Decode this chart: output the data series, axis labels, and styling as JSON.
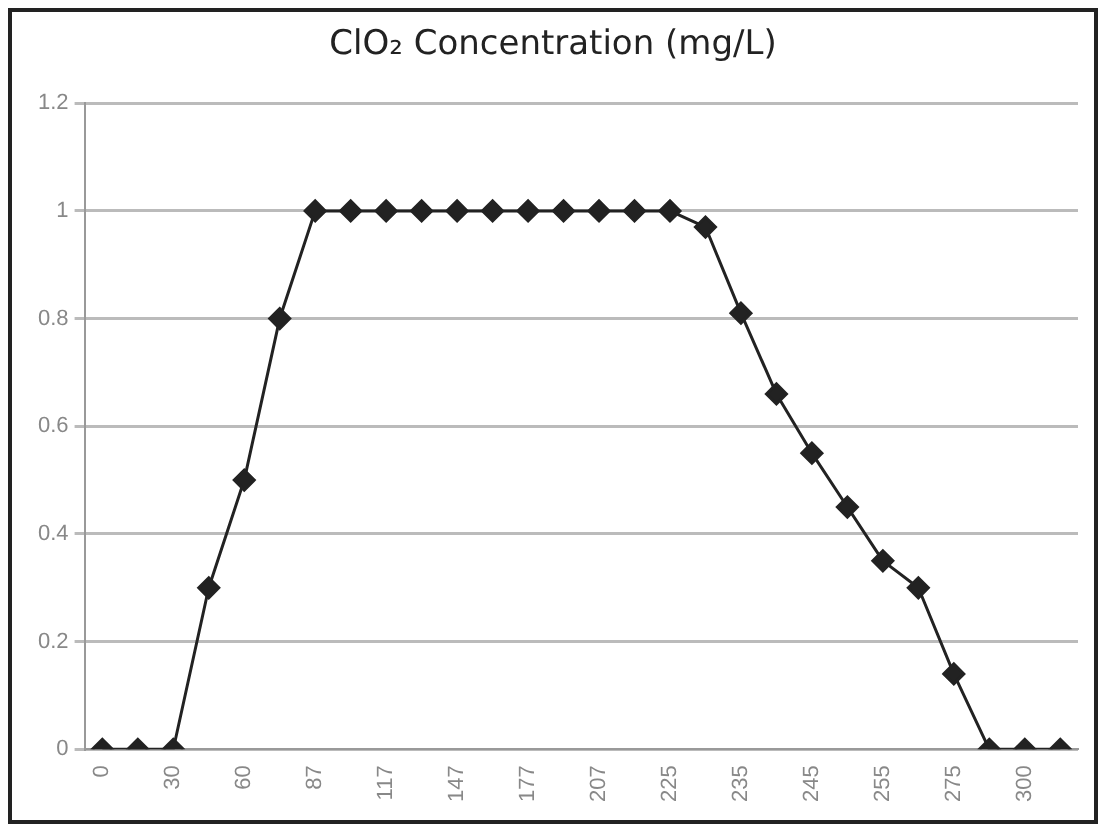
{
  "chart_data": {
    "type": "line",
    "title": "ClO₂ Concentration (mg/L)",
    "categories": [
      "0",
      null,
      "30",
      null,
      "60",
      null,
      "87",
      null,
      "117",
      null,
      "147",
      null,
      "177",
      null,
      "207",
      null,
      "225",
      null,
      "235",
      null,
      "245",
      null,
      "255",
      null,
      "275",
      null,
      "300",
      null
    ],
    "series": [
      {
        "color": "#222222",
        "values": [
          0,
          0,
          0,
          0.3,
          0.5,
          0.8,
          1,
          1,
          1,
          1,
          1,
          1,
          1,
          1,
          1,
          1,
          1,
          0.97,
          0.81,
          0.66,
          0.55,
          0.45,
          0.35,
          0.3,
          0.14,
          0,
          0,
          0
        ]
      }
    ],
    "ylim": [
      0,
      1.2
    ],
    "yticks": [
      0,
      0.2,
      0.4,
      0.6,
      0.8,
      1,
      1.2
    ],
    "grid": "y",
    "legend": false,
    "marker": "diamond",
    "line_style": "solid"
  }
}
